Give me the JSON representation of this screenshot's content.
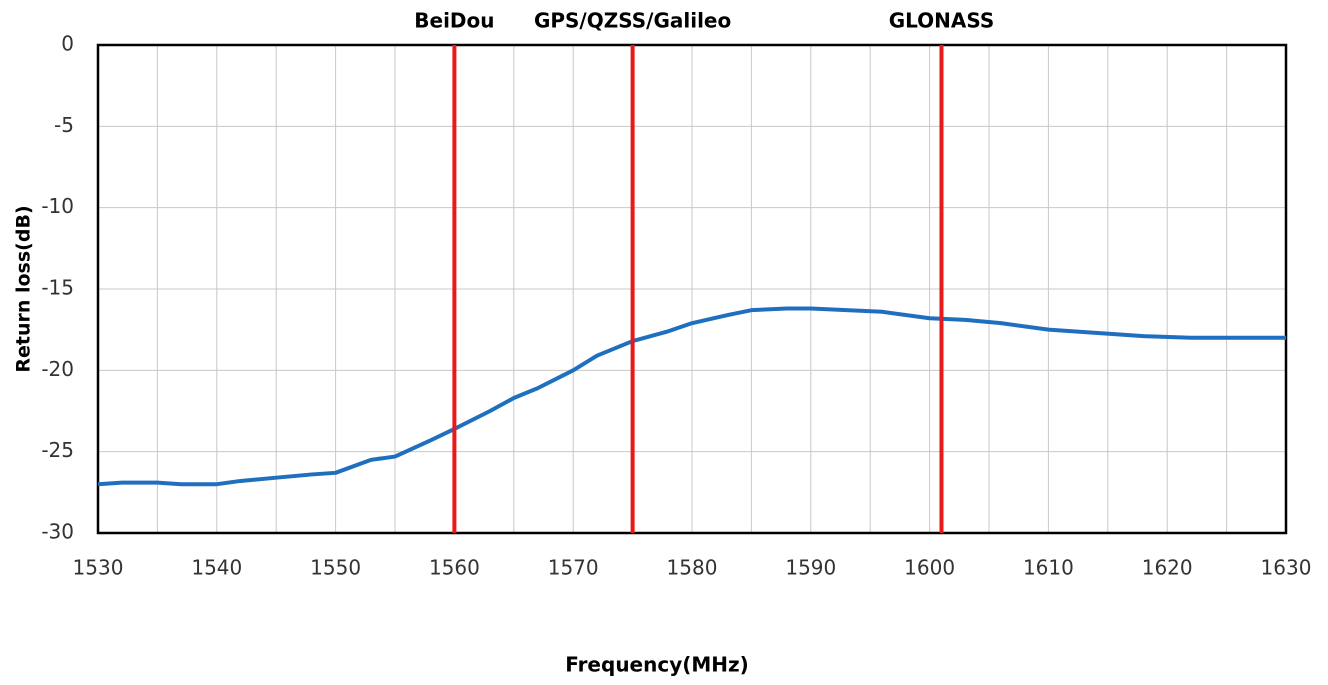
{
  "chart_data": {
    "type": "line",
    "xlabel": "Frequency(MHz)",
    "ylabel": "Return loss(dB)",
    "x": [
      1530,
      1532,
      1535,
      1537,
      1540,
      1542,
      1545,
      1548,
      1550,
      1553,
      1555,
      1558,
      1560,
      1563,
      1565,
      1567,
      1570,
      1572,
      1575,
      1578,
      1580,
      1583,
      1585,
      1588,
      1590,
      1593,
      1596,
      1600,
      1603,
      1606,
      1610,
      1614,
      1618,
      1622,
      1626,
      1630
    ],
    "series": [
      {
        "color": "#1f6fbf",
        "values": [
          -27,
          -26.9,
          -26.9,
          -27,
          -27,
          -26.8,
          -26.6,
          -26.4,
          -26.3,
          -25.5,
          -25.3,
          -24.3,
          -23.6,
          -22.5,
          -21.7,
          -21.1,
          -20,
          -19.1,
          -18.2,
          -17.6,
          -17.1,
          -16.6,
          -16.3,
          -16.2,
          -16.2,
          -16.3,
          -16.4,
          -16.8,
          -16.9,
          -17.1,
          -17.5,
          -17.7,
          -17.9,
          -18.0,
          -18.0,
          -18.0
        ]
      }
    ],
    "xlim": [
      1530,
      1630
    ],
    "xticks": [
      1530,
      1540,
      1550,
      1560,
      1570,
      1580,
      1590,
      1600,
      1610,
      1620,
      1630
    ],
    "x_minor_grid": [
      1535,
      1545,
      1555,
      1565,
      1575,
      1585,
      1595,
      1605,
      1615,
      1625
    ],
    "ylim": [
      -30,
      0
    ],
    "yticks": [
      -30,
      -25,
      -20,
      -15,
      -10,
      -5,
      0
    ],
    "grid": true,
    "annotations": [
      {
        "label": "BeiDou",
        "x": 1560
      },
      {
        "label": "GPS/QZSS/Galileo",
        "x": 1575
      },
      {
        "label": "GLONASS",
        "x": 1601
      }
    ],
    "annotation_color": "#e8191a"
  }
}
